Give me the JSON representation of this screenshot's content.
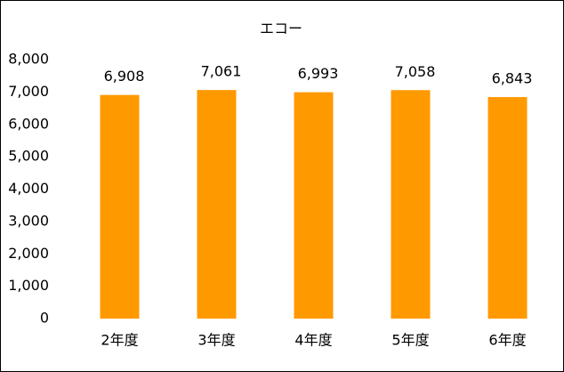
{
  "chart_data": {
    "type": "bar",
    "title": "エコー",
    "categories": [
      "2年度",
      "3年度",
      "4年度",
      "5年度",
      "6年度"
    ],
    "values": [
      6908,
      7061,
      6993,
      7058,
      6843
    ],
    "value_labels": [
      "6,908",
      "7,061",
      "6,993",
      "7,058",
      "6,843"
    ],
    "color": "#ff9900",
    "ylim": [
      0,
      8000
    ],
    "yticks": [
      0,
      {
        "value": 1000,
        "label": "1,000"
      },
      {
        "value": 2000,
        "label": "2,000"
      },
      {
        "value": 3000,
        "label": "3,000"
      },
      {
        "value": 4000,
        "label": "4,000"
      },
      {
        "value": 5000,
        "label": "5,000"
      },
      {
        "value": 6000,
        "label": "6,000"
      },
      {
        "value": 7000,
        "label": "7,000"
      },
      {
        "value": 8000,
        "label": "8,000"
      }
    ],
    "grid": false
  }
}
